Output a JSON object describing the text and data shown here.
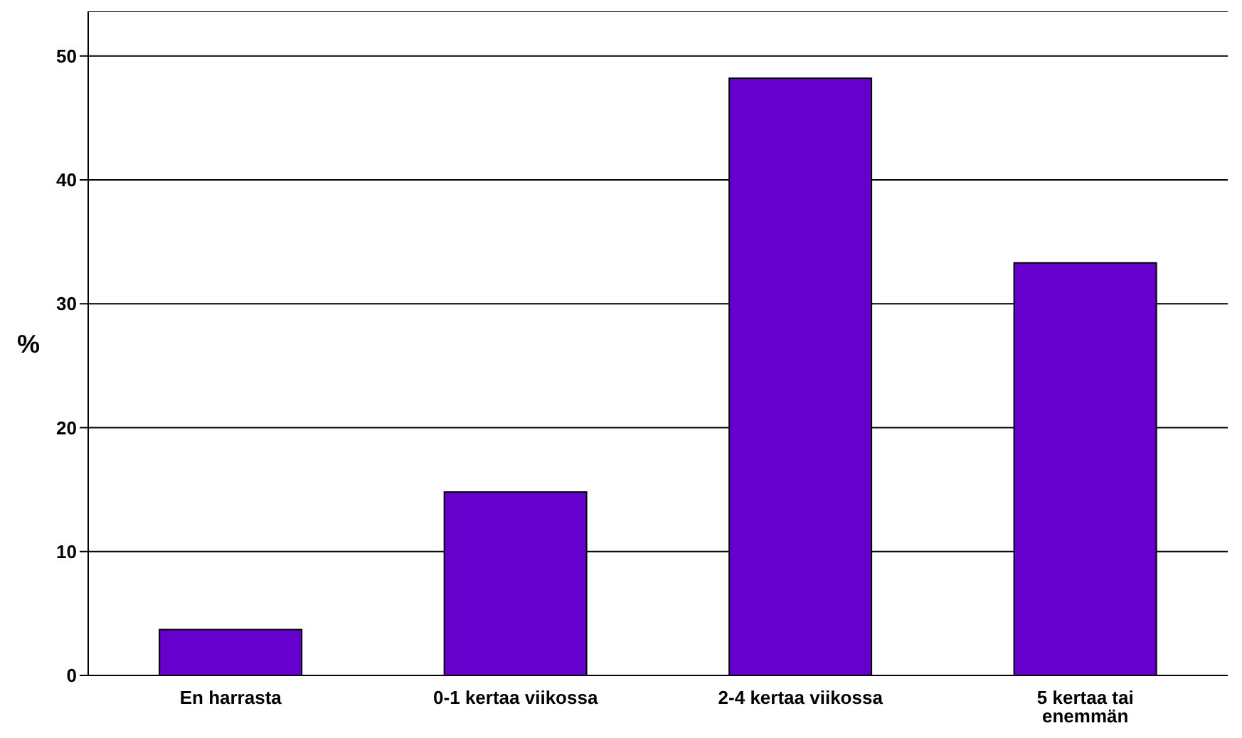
{
  "chart_data": {
    "type": "bar",
    "ylabel": "%",
    "categories": [
      "En harrasta",
      "0-1 kertaa viikossa",
      "2-4 kertaa viikossa",
      "5 kertaa tai enemmän"
    ],
    "values": [
      3.7,
      14.8,
      48.2,
      33.3
    ],
    "color": "#6600cc",
    "ylim": [
      0,
      53.6
    ],
    "yticks": [
      0,
      10,
      20,
      30,
      40,
      50
    ],
    "grid": "y"
  }
}
